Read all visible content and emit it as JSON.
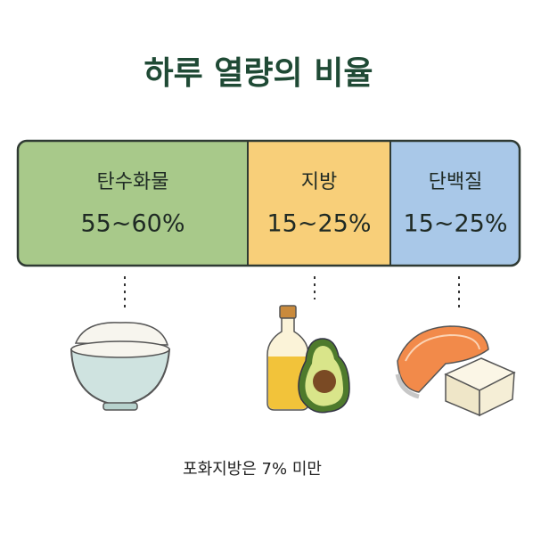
{
  "title": "하루 열량의 비율",
  "segments": [
    {
      "label": "탄수화물",
      "range": "55~60%"
    },
    {
      "label": "지방",
      "range": "15~25%"
    },
    {
      "label": "단백질",
      "range": "15~25%"
    }
  ],
  "footnote": "포화지방은 7% 미만"
}
